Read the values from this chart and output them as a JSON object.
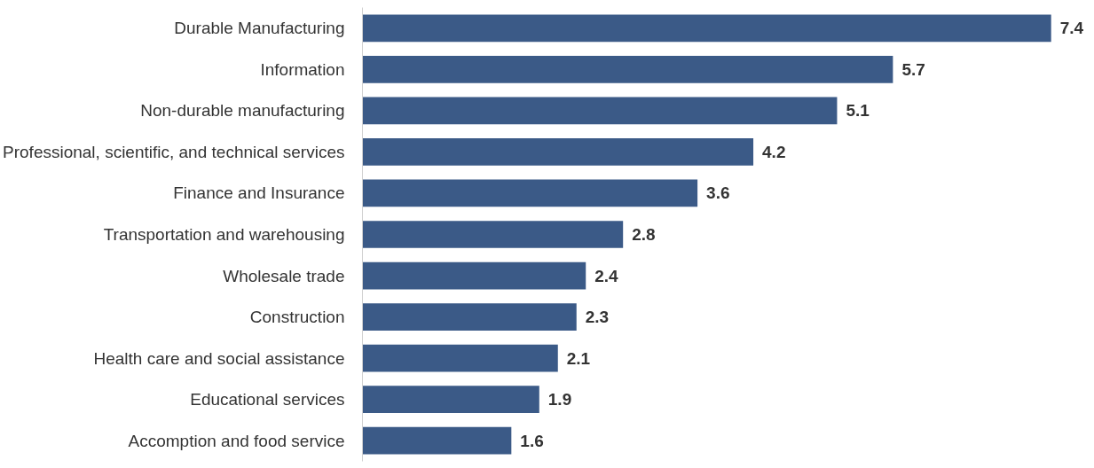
{
  "chart_data": {
    "type": "bar",
    "orientation": "horizontal",
    "categories": [
      "Durable Manufacturing",
      "Information",
      "Non-durable manufacturing",
      "Professional, scientific, and technical services",
      "Finance and Insurance",
      "Transportation and warehousing",
      "Wholesale trade",
      "Construction",
      "Health care and social assistance",
      "Educational services",
      "Accomption and food service"
    ],
    "values": [
      7.4,
      5.7,
      5.1,
      4.2,
      3.6,
      2.8,
      2.4,
      2.3,
      2.1,
      1.9,
      1.6
    ],
    "color": "#3b5a87",
    "data_labels": true,
    "tick_labels": "y"
  }
}
